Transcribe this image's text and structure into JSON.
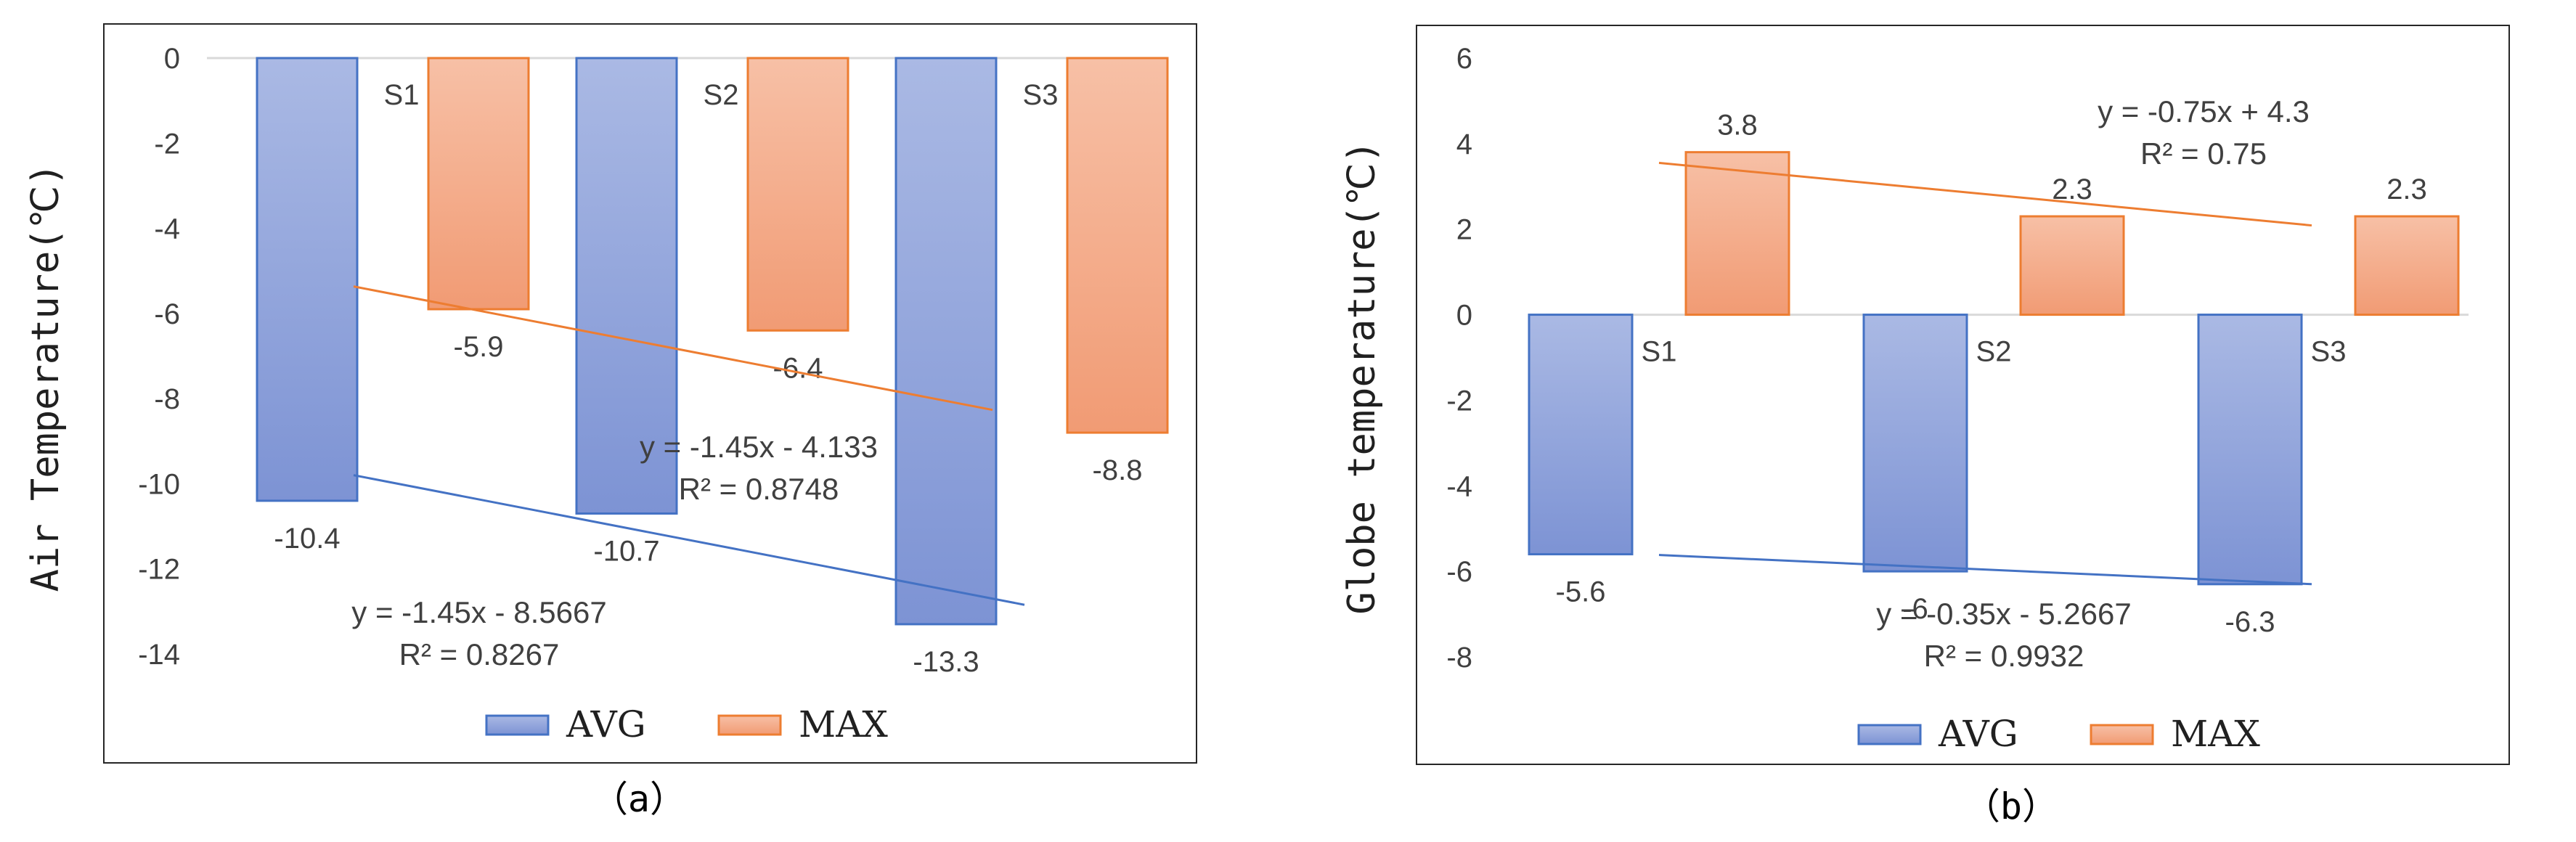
{
  "chart_data": [
    {
      "type": "bar",
      "panel_label": "（a）",
      "title": "",
      "xlabel": "",
      "ylabel": "Air Temperature(℃)",
      "ylim": [
        -14,
        0
      ],
      "yticks": [
        0,
        -2,
        -4,
        -6,
        -8,
        -10,
        -12,
        -14
      ],
      "categories": [
        "S1",
        "S2",
        "S3"
      ],
      "series": [
        {
          "name": "AVG",
          "color": "#8FA3DB",
          "values": [
            -10.4,
            -10.7,
            -13.3
          ],
          "labels": [
            "-10.4",
            "-10.7",
            "-13.3"
          ]
        },
        {
          "name": "MAX",
          "color": "#F4A582",
          "values": [
            -5.9,
            -6.4,
            -8.8
          ],
          "labels": [
            "-5.9",
            "-6.4",
            "-8.8"
          ]
        }
      ],
      "trendlines": [
        {
          "series": "AVG",
          "color": "#4472C4",
          "slope": -1.45,
          "intercept": -8.5667,
          "equation": "y = -1.45x - 8.5667",
          "r2": "R² = 0.8267"
        },
        {
          "series": "MAX",
          "color": "#ED7D31",
          "slope": -1.45,
          "intercept": -4.133,
          "equation": "y = -1.45x - 4.133",
          "r2": "R² = 0.8748"
        }
      ],
      "legend": [
        "AVG",
        "MAX"
      ]
    },
    {
      "type": "bar",
      "panel_label": "（b）",
      "title": "",
      "xlabel": "",
      "ylabel": "Globe temperature(℃)",
      "ylim": [
        -8,
        6
      ],
      "yticks": [
        6,
        4,
        2,
        0,
        -2,
        -4,
        -6,
        -8
      ],
      "categories": [
        "S1",
        "S2",
        "S3"
      ],
      "series": [
        {
          "name": "AVG",
          "color": "#8FA3DB",
          "values": [
            -5.6,
            -6,
            -6.3
          ],
          "labels": [
            "-5.6",
            "-6",
            "-6.3"
          ]
        },
        {
          "name": "MAX",
          "color": "#F4A582",
          "values": [
            3.8,
            2.3,
            2.3
          ],
          "labels": [
            "3.8",
            "2.3",
            "2.3"
          ]
        }
      ],
      "trendlines": [
        {
          "series": "AVG",
          "color": "#4472C4",
          "slope": -0.35,
          "intercept": -5.2667,
          "equation": "y = -0.35x - 5.2667",
          "r2": "R² = 0.9932"
        },
        {
          "series": "MAX",
          "color": "#ED7D31",
          "slope": -0.75,
          "intercept": 4.3,
          "equation": "y = -0.75x + 4.3",
          "r2": "R² = 0.75"
        }
      ],
      "legend": [
        "AVG",
        "MAX"
      ]
    }
  ]
}
